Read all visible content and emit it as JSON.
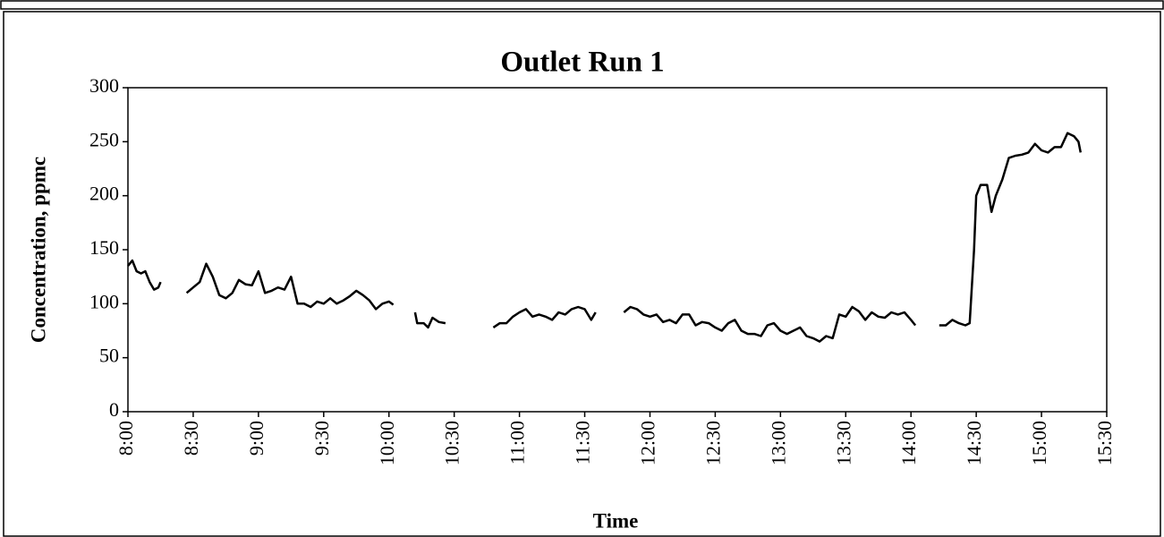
{
  "chart_data": {
    "type": "line",
    "title": "Outlet Run 1",
    "x_label": "Time",
    "y_label": "Concentration, ppmc",
    "x": [
      "8:00",
      "8:02",
      "8:04",
      "8:06",
      "8:08",
      "8:10",
      "8:12",
      "8:14",
      "8:15",
      "8:21",
      "8:27",
      "8:30",
      "8:33",
      "8:36",
      "8:39",
      "8:42",
      "8:45",
      "8:48",
      "8:51",
      "8:54",
      "8:57",
      "9:00",
      "9:03",
      "9:06",
      "9:09",
      "9:12",
      "9:15",
      "9:18",
      "9:21",
      "9:24",
      "9:27",
      "9:30",
      "9:33",
      "9:36",
      "9:39",
      "9:42",
      "9:45",
      "9:48",
      "9:51",
      "9:54",
      "9:57",
      "10:00",
      "10:02",
      "10:07",
      "10:12",
      "10:13",
      "10:16",
      "10:18",
      "10:20",
      "10:23",
      "10:26",
      "10:37",
      "10:48",
      "10:51",
      "10:54",
      "10:57",
      "11:00",
      "11:03",
      "11:06",
      "11:09",
      "11:12",
      "11:15",
      "11:18",
      "11:21",
      "11:24",
      "11:27",
      "11:30",
      "11:33",
      "11:35",
      "11:41",
      "11:48",
      "11:51",
      "11:54",
      "11:57",
      "12:00",
      "12:03",
      "12:06",
      "12:09",
      "12:12",
      "12:15",
      "12:18",
      "12:21",
      "12:24",
      "12:27",
      "12:30",
      "12:33",
      "12:36",
      "12:39",
      "12:42",
      "12:45",
      "12:48",
      "12:51",
      "12:54",
      "12:57",
      "13:00",
      "13:03",
      "13:06",
      "13:09",
      "13:12",
      "13:15",
      "13:18",
      "13:21",
      "13:24",
      "13:27",
      "13:30",
      "13:33",
      "13:36",
      "13:39",
      "13:42",
      "13:45",
      "13:48",
      "13:51",
      "13:54",
      "13:57",
      "14:00",
      "14:02",
      "14:07",
      "14:13",
      "14:16",
      "14:19",
      "14:22",
      "14:25",
      "14:27",
      "14:29",
      "14:30",
      "14:32",
      "14:35",
      "14:37",
      "14:39",
      "14:42",
      "14:45",
      "14:48",
      "14:51",
      "14:54",
      "14:57",
      "15:00",
      "15:03",
      "15:06",
      "15:09",
      "15:12",
      "15:15",
      "15:17",
      "15:18"
    ],
    "values": [
      135,
      140,
      130,
      128,
      130,
      120,
      113,
      115,
      120,
      null,
      110,
      115,
      120,
      137,
      125,
      108,
      105,
      110,
      122,
      118,
      117,
      130,
      110,
      112,
      115,
      113,
      125,
      100,
      100,
      97,
      102,
      100,
      105,
      100,
      103,
      107,
      112,
      108,
      103,
      95,
      100,
      102,
      99,
      null,
      92,
      82,
      82,
      78,
      87,
      83,
      82,
      null,
      78,
      82,
      82,
      88,
      92,
      95,
      88,
      90,
      88,
      85,
      92,
      90,
      95,
      97,
      95,
      85,
      92,
      null,
      92,
      97,
      95,
      90,
      88,
      90,
      83,
      85,
      82,
      90,
      90,
      80,
      83,
      82,
      78,
      75,
      82,
      85,
      75,
      72,
      72,
      70,
      80,
      82,
      75,
      72,
      75,
      78,
      70,
      68,
      65,
      70,
      68,
      90,
      88,
      97,
      93,
      85,
      92,
      88,
      87,
      92,
      90,
      92,
      85,
      80,
      null,
      80,
      80,
      85,
      82,
      80,
      82,
      150,
      200,
      210,
      210,
      185,
      200,
      215,
      235,
      237,
      238,
      240,
      248,
      242,
      240,
      245,
      245,
      258,
      255,
      250,
      240
    ],
    "color": "#000000",
    "xlim": [
      "8:00",
      "15:30"
    ],
    "xticks": [
      "8:00",
      "8:30",
      "9:00",
      "9:30",
      "10:00",
      "10:30",
      "11:00",
      "11:30",
      "12:00",
      "12:30",
      "13:00",
      "13:30",
      "14:00",
      "14:30",
      "15:00",
      "15:30"
    ],
    "ylim": [
      0,
      300
    ],
    "yticks": [
      0,
      50,
      100,
      150,
      200,
      250,
      300
    ],
    "grid": false
  }
}
